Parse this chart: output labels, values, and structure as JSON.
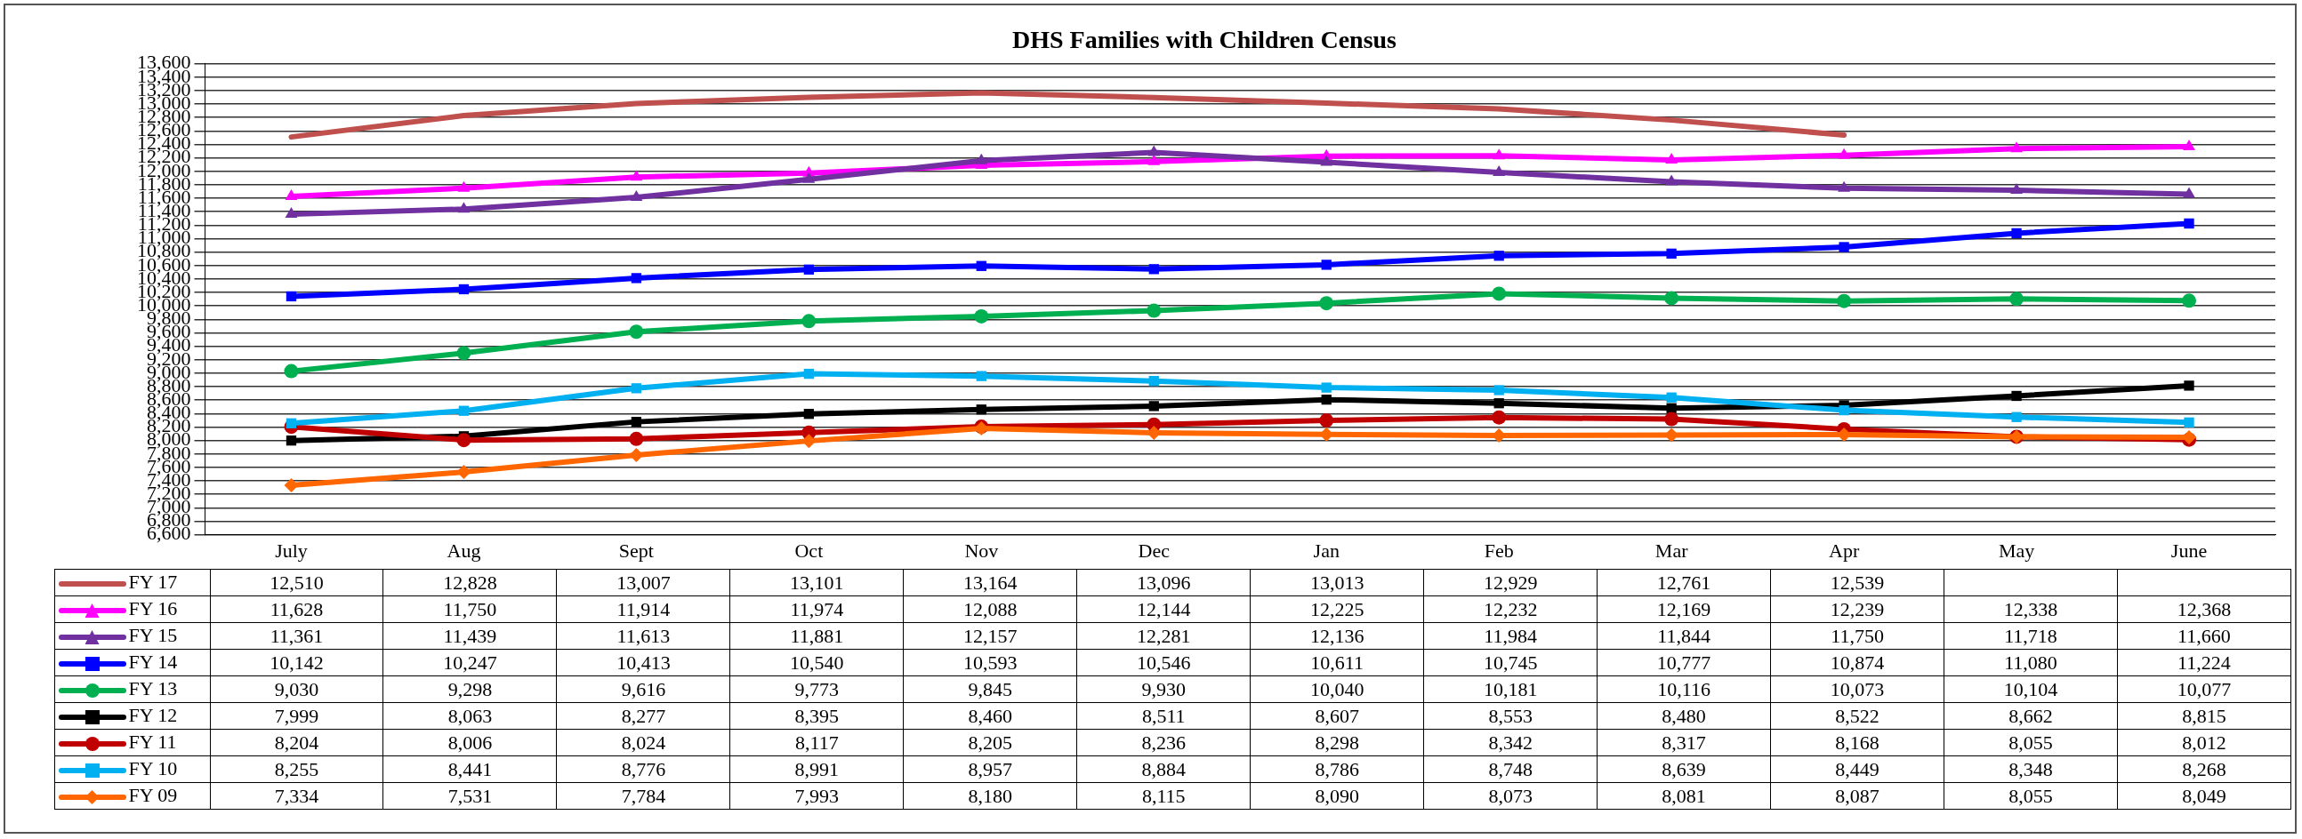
{
  "chart_data": {
    "type": "line",
    "title": "DHS Families with Children Census",
    "categories": [
      "July",
      "Aug",
      "Sept",
      "Oct",
      "Nov",
      "Dec",
      "Jan",
      "Feb",
      "Mar",
      "Apr",
      "May",
      "June"
    ],
    "series": [
      {
        "name": "FY 17",
        "color": "#c0504d",
        "marker": "none",
        "values": [
          12510,
          12828,
          13007,
          13101,
          13164,
          13096,
          13013,
          12929,
          12761,
          12539,
          null,
          null
        ],
        "value_labels": [
          "12,510",
          "12,828",
          "13,007",
          "13,101",
          "13,164",
          "13,096",
          "13,013",
          "12,929",
          "12,761",
          "12,539",
          null,
          null
        ]
      },
      {
        "name": "FY 16",
        "color": "#ff00ff",
        "marker": "triangle",
        "values": [
          11628,
          11750,
          11914,
          11974,
          12088,
          12144,
          12225,
          12232,
          12169,
          12239,
          12338,
          12368
        ],
        "value_labels": [
          "11,628",
          "11,750",
          "11,914",
          "11,974",
          "12,088",
          "12,144",
          "12,225",
          "12,232",
          "12,169",
          "12,239",
          "12,338",
          "12,368"
        ]
      },
      {
        "name": "FY 15",
        "color": "#7030a0",
        "marker": "triangle",
        "values": [
          11361,
          11439,
          11613,
          11881,
          12157,
          12281,
          12136,
          11984,
          11844,
          11750,
          11718,
          11660
        ],
        "value_labels": [
          "11,361",
          "11,439",
          "11,613",
          "11,881",
          "12,157",
          "12,281",
          "12,136",
          "11,984",
          "11,844",
          "11,750",
          "11,718",
          "11,660"
        ]
      },
      {
        "name": "FY 14",
        "color": "#0000ff",
        "marker": "square",
        "values": [
          10142,
          10247,
          10413,
          10540,
          10593,
          10546,
          10611,
          10745,
          10777,
          10874,
          11080,
          11224
        ],
        "value_labels": [
          "10,142",
          "10,247",
          "10,413",
          "10,540",
          "10,593",
          "10,546",
          "10,611",
          "10,745",
          "10,777",
          "10,874",
          "11,080",
          "11,224"
        ]
      },
      {
        "name": "FY 13",
        "color": "#00b050",
        "marker": "circle",
        "values": [
          9030,
          9298,
          9616,
          9773,
          9845,
          9930,
          10040,
          10181,
          10116,
          10073,
          10104,
          10077
        ],
        "value_labels": [
          "9,030",
          "9,298",
          "9,616",
          "9,773",
          "9,845",
          "9,930",
          "10,040",
          "10,181",
          "10,116",
          "10,073",
          "10,104",
          "10,077"
        ]
      },
      {
        "name": "FY 12",
        "color": "#000000",
        "marker": "square",
        "values": [
          7999,
          8063,
          8277,
          8395,
          8460,
          8511,
          8607,
          8553,
          8480,
          8522,
          8662,
          8815
        ],
        "value_labels": [
          "7,999",
          "8,063",
          "8,277",
          "8,395",
          "8,460",
          "8,511",
          "8,607",
          "8,553",
          "8,480",
          "8,522",
          "8,662",
          "8,815"
        ]
      },
      {
        "name": "FY 11",
        "color": "#c00000",
        "marker": "circle",
        "values": [
          8204,
          8006,
          8024,
          8117,
          8205,
          8236,
          8298,
          8342,
          8317,
          8168,
          8055,
          8012
        ],
        "value_labels": [
          "8,204",
          "8,006",
          "8,024",
          "8,117",
          "8,205",
          "8,236",
          "8,298",
          "8,342",
          "8,317",
          "8,168",
          "8,055",
          "8,012"
        ]
      },
      {
        "name": "FY 10",
        "color": "#00b0f0",
        "marker": "square",
        "values": [
          8255,
          8441,
          8776,
          8991,
          8957,
          8884,
          8786,
          8748,
          8639,
          8449,
          8348,
          8268
        ],
        "value_labels": [
          "8,255",
          "8,441",
          "8,776",
          "8,991",
          "8,957",
          "8,884",
          "8,786",
          "8,748",
          "8,639",
          "8,449",
          "8,348",
          "8,268"
        ]
      },
      {
        "name": "FY 09",
        "color": "#ff6600",
        "marker": "diamond",
        "values": [
          7334,
          7531,
          7784,
          7993,
          8180,
          8115,
          8090,
          8073,
          8081,
          8087,
          8055,
          8049
        ],
        "value_labels": [
          "7,334",
          "7,531",
          "7,784",
          "7,993",
          "8,180",
          "8,115",
          "8,090",
          "8,073",
          "8,081",
          "8,087",
          "8,055",
          "8,049"
        ]
      }
    ],
    "ylim": [
      6600,
      13600
    ],
    "yticks": [
      {
        "value": 6600,
        "label": "6,600"
      },
      {
        "value": 6800,
        "label": "6,800"
      },
      {
        "value": 7000,
        "label": "7,000"
      },
      {
        "value": 7200,
        "label": "7,200"
      },
      {
        "value": 7400,
        "label": "7,400"
      },
      {
        "value": 7600,
        "label": "7,600"
      },
      {
        "value": 7800,
        "label": "7,800"
      },
      {
        "value": 8000,
        "label": "8,000"
      },
      {
        "value": 8200,
        "label": "8,200"
      },
      {
        "value": 8400,
        "label": "8,400"
      },
      {
        "value": 8600,
        "label": "8,600"
      },
      {
        "value": 8800,
        "label": "8,800"
      },
      {
        "value": 9000,
        "label": "9,000"
      },
      {
        "value": 9200,
        "label": "9,200"
      },
      {
        "value": 9400,
        "label": "9,400"
      },
      {
        "value": 9600,
        "label": "9,600"
      },
      {
        "value": 9800,
        "label": "9,800"
      },
      {
        "value": 10000,
        "label": "10,000"
      },
      {
        "value": 10200,
        "label": "10,200"
      },
      {
        "value": 10400,
        "label": "10,400"
      },
      {
        "value": 10600,
        "label": "10,600"
      },
      {
        "value": 10800,
        "label": "10,800"
      },
      {
        "value": 11000,
        "label": "11,000"
      },
      {
        "value": 11200,
        "label": "11,200"
      },
      {
        "value": 11400,
        "label": "11,400"
      },
      {
        "value": 11600,
        "label": "11,600"
      },
      {
        "value": 11800,
        "label": "11,800"
      },
      {
        "value": 12000,
        "label": "12,000"
      },
      {
        "value": 12200,
        "label": "12,200"
      },
      {
        "value": 12400,
        "label": "12,400"
      },
      {
        "value": 12600,
        "label": "12,600"
      },
      {
        "value": 12800,
        "label": "12,800"
      },
      {
        "value": 13000,
        "label": "13,000"
      },
      {
        "value": 13200,
        "label": "13,200"
      },
      {
        "value": 13400,
        "label": "13,400"
      },
      {
        "value": 13600,
        "label": "13,600"
      }
    ],
    "grid": "y",
    "legend": "bottom",
    "line_style": "solid"
  }
}
